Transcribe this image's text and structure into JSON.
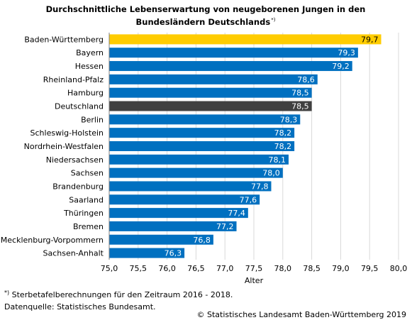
{
  "title": {
    "line1": "Durchschnittliche Lebenserwartung von neugeborenen Jungen in den",
    "line2": "Bundesländern Deutschlands",
    "marker": "*)"
  },
  "footnote": {
    "marker": "*)",
    "text": "Sterbetafelberechnungen für den Zeitraum 2016 - 2018."
  },
  "source": "Datenquelle: Statistisches Bundesamt.",
  "copyright": "© Statistisches Landesamt Baden-Württemberg 2019",
  "chart_data": {
    "type": "bar",
    "orientation": "horizontal",
    "categories": [
      "Baden-Württemberg",
      "Bayern",
      "Hessen",
      "Rheinland-Pfalz",
      "Hamburg",
      "Deutschland",
      "Berlin",
      "Schleswig-Holstein",
      "Nordrhein-Westfalen",
      "Niedersachsen",
      "Sachsen",
      "Brandenburg",
      "Saarland",
      "Thüringen",
      "Bremen",
      "Mecklenburg-Vorpommern",
      "Sachsen-Anhalt"
    ],
    "values": [
      79.7,
      79.3,
      79.2,
      78.6,
      78.5,
      78.5,
      78.3,
      78.2,
      78.2,
      78.1,
      78.0,
      77.8,
      77.6,
      77.4,
      77.2,
      76.8,
      76.3
    ],
    "value_labels": [
      "79,7",
      "79,3",
      "79,2",
      "78,6",
      "78,5",
      "78,5",
      "78,3",
      "78,2",
      "78,2",
      "78,1",
      "78,0",
      "77,8",
      "77,6",
      "77,4",
      "77,2",
      "76,8",
      "76,3"
    ],
    "bar_colors": [
      "#ffcc00",
      "#0070c0",
      "#0070c0",
      "#0070c0",
      "#0070c0",
      "#404040",
      "#0070c0",
      "#0070c0",
      "#0070c0",
      "#0070c0",
      "#0070c0",
      "#0070c0",
      "#0070c0",
      "#0070c0",
      "#0070c0",
      "#0070c0",
      "#0070c0"
    ],
    "value_label_colors": [
      "#000000",
      "#ffffff",
      "#ffffff",
      "#ffffff",
      "#ffffff",
      "#ffffff",
      "#ffffff",
      "#ffffff",
      "#ffffff",
      "#ffffff",
      "#ffffff",
      "#ffffff",
      "#ffffff",
      "#ffffff",
      "#ffffff",
      "#ffffff",
      "#ffffff"
    ],
    "xlim": [
      75.0,
      80.0
    ],
    "xticks": [
      75.0,
      75.5,
      76.0,
      76.5,
      77.0,
      77.5,
      78.0,
      78.5,
      79.0,
      79.5,
      80.0
    ],
    "xtick_labels": [
      "75,0",
      "75,5",
      "76,0",
      "76,5",
      "77,0",
      "77,5",
      "78,0",
      "78,5",
      "79,0",
      "79,5",
      "80,0"
    ],
    "xlabel": "Alter",
    "grid": "vertical",
    "grid_color": "#d9d9d9",
    "legend": "none"
  }
}
